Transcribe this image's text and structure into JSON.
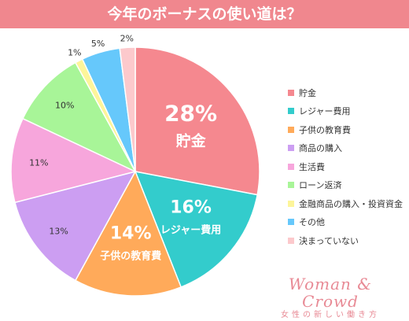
{
  "chart_data": {
    "type": "pie",
    "title": "今年のボーナスの使い道は？",
    "slices": [
      {
        "label": "貯金",
        "value": 28,
        "value_label": "28%",
        "color": "#f5888f"
      },
      {
        "label": "レジャー費用",
        "value": 16,
        "value_label": "16%",
        "color": "#33cccc"
      },
      {
        "label": "子供の教育費",
        "value": 14,
        "value_label": "14%",
        "color": "#ffaa5a"
      },
      {
        "label": "商品の購入",
        "value": 13,
        "value_label": "13%",
        "color": "#cc9ef2"
      },
      {
        "label": "生活費",
        "value": 11,
        "value_label": "11%",
        "color": "#f7a6dc"
      },
      {
        "label": "ローン返済",
        "value": 10,
        "value_label": "10%",
        "color": "#a8f598"
      },
      {
        "label": "金融商品の購入・投資資金",
        "value": 1,
        "value_label": "1%",
        "color": "#fdf59a"
      },
      {
        "label": "その他",
        "value": 5,
        "value_label": "5%",
        "color": "#66c8fb"
      },
      {
        "label": "決まっていない",
        "value": 2,
        "value_label": "2%",
        "color": "#fcc9cc"
      }
    ],
    "legend_position": "right"
  },
  "brand": {
    "name": "Woman & Crowd",
    "tagline": "女性の新しい働き方"
  }
}
